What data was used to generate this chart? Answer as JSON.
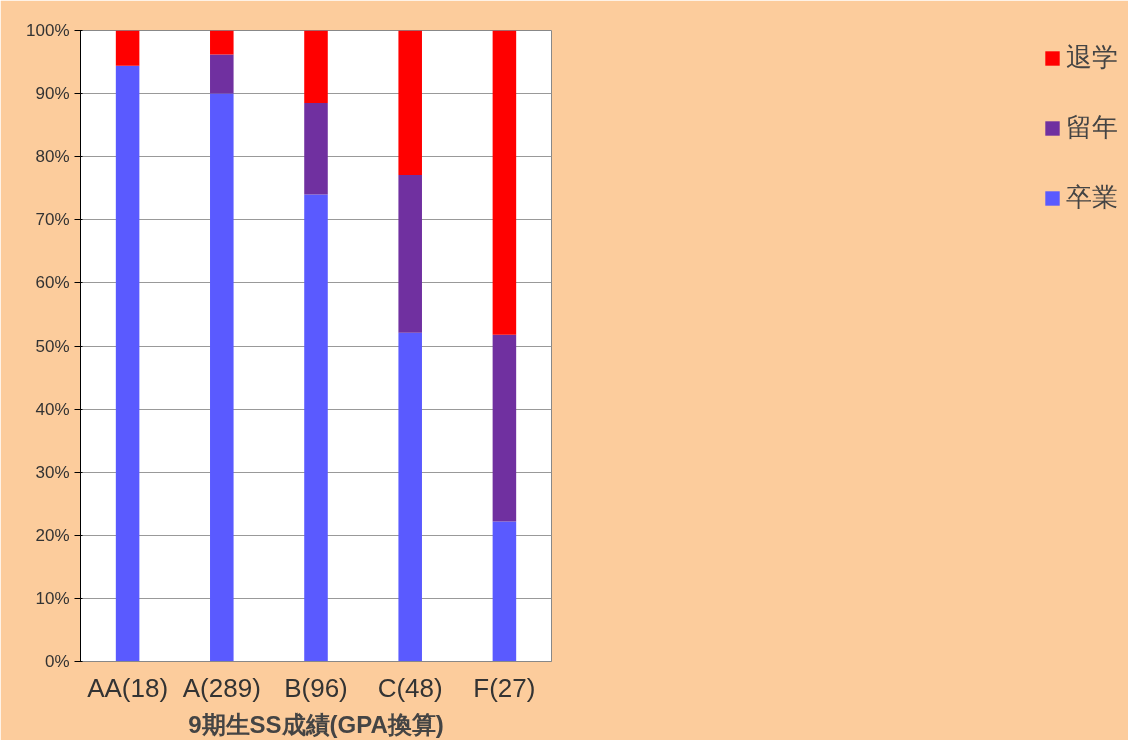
{
  "chart_data": {
    "type": "bar",
    "stacked": true,
    "xlabel": "9期生SS成績(GPA換算)",
    "categories": [
      "AA(18)",
      "A(289)",
      "B(96)",
      "C(48)",
      "F(27)"
    ],
    "series": [
      {
        "name": "卒業",
        "color": "#5a5aff",
        "values": [
          94.4,
          90.0,
          74.0,
          52.1,
          22.2
        ]
      },
      {
        "name": "留年",
        "color": "#7030a0",
        "values": [
          0,
          6.2,
          14.5,
          25.0,
          29.6
        ]
      },
      {
        "name": "退学",
        "color": "#ff0000",
        "values": [
          5.6,
          3.8,
          11.5,
          22.9,
          48.2
        ]
      }
    ],
    "ylim": [
      0,
      100
    ],
    "yticks": [
      {
        "value": 0,
        "label": "0%"
      },
      {
        "value": 10,
        "label": "10%"
      },
      {
        "value": 20,
        "label": "20%"
      },
      {
        "value": 30,
        "label": "30%"
      },
      {
        "value": 40,
        "label": "40%"
      },
      {
        "value": 50,
        "label": "50%"
      },
      {
        "value": 60,
        "label": "60%"
      },
      {
        "value": 70,
        "label": "70%"
      },
      {
        "value": 80,
        "label": "80%"
      },
      {
        "value": 90,
        "label": "90%"
      },
      {
        "value": 100,
        "label": "100%"
      }
    ],
    "grid": "y",
    "legend": "right"
  }
}
